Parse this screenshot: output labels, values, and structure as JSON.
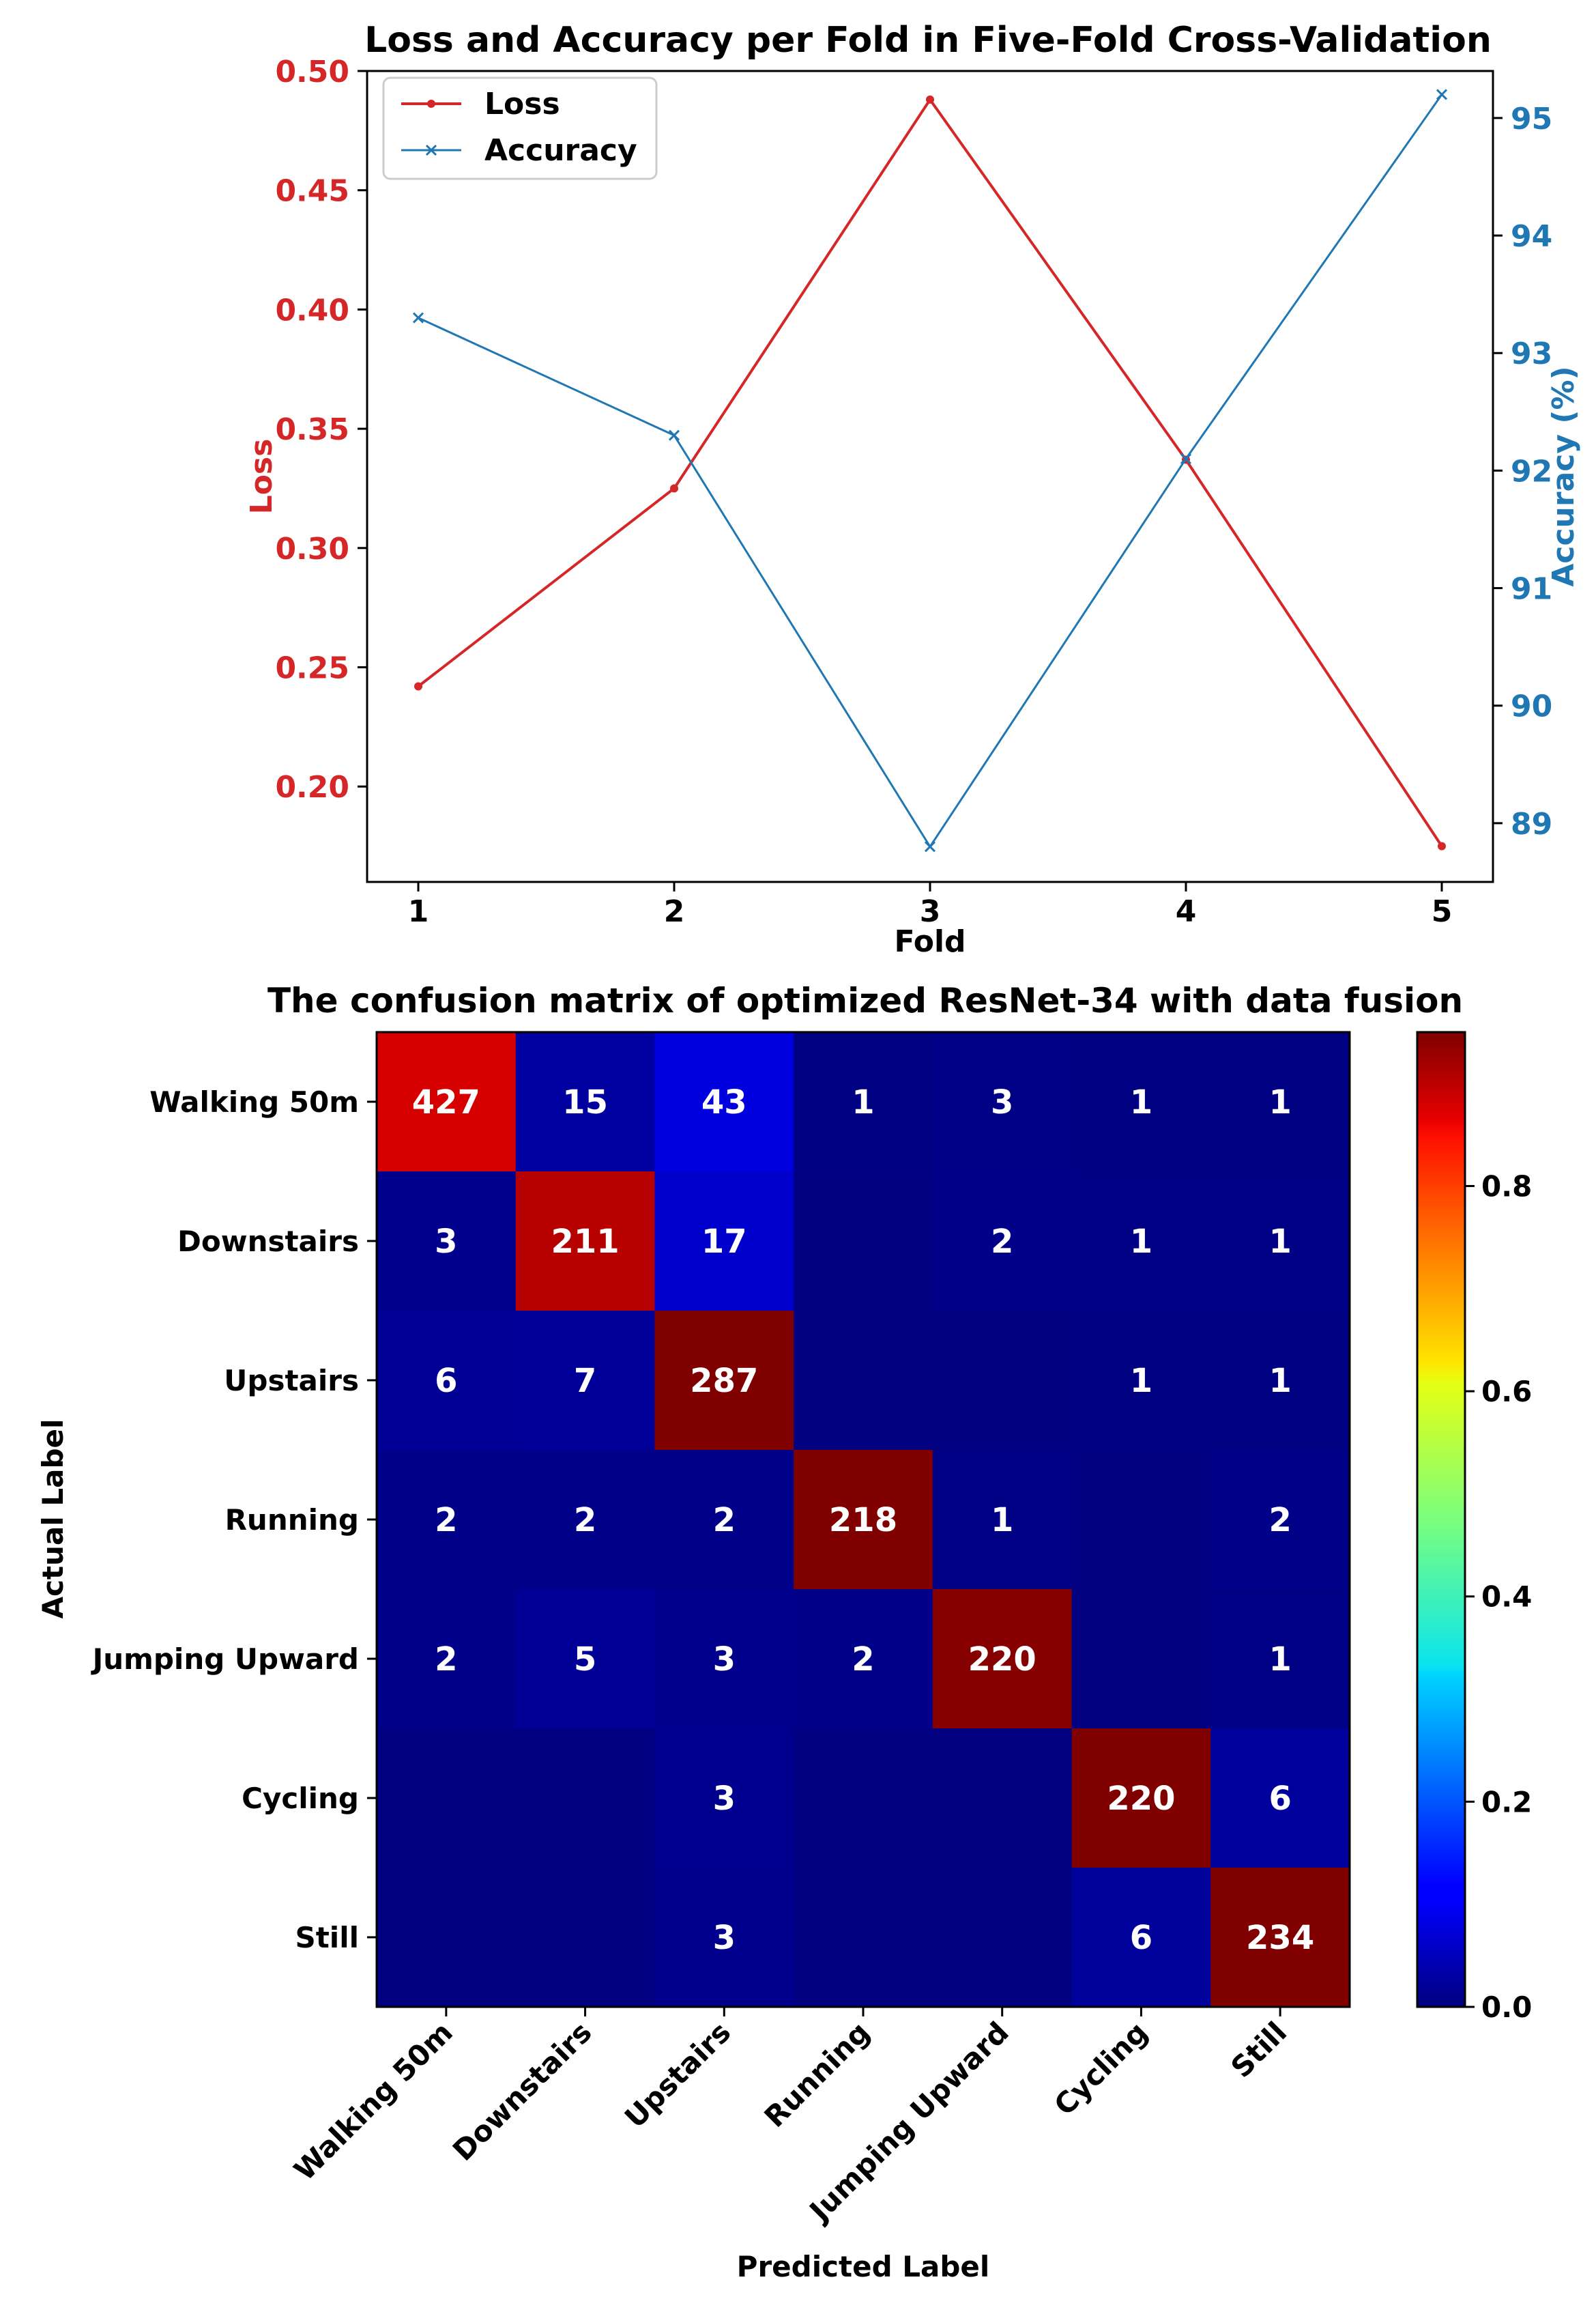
{
  "colors": {
    "loss": "#d62728",
    "accuracy": "#1f77b4",
    "text": "#000000",
    "cell_text": "#ffffff",
    "colormap": "jet"
  },
  "chart_data": [
    {
      "type": "line",
      "title": "Loss and Accuracy per Fold in Five-Fold Cross-Validation",
      "xlabel": "Fold",
      "ylabel_left": "Loss",
      "ylabel_right": "Accuracy (%)",
      "x": [
        1,
        2,
        3,
        4,
        5
      ],
      "x_ticks": [
        "1",
        "2",
        "3",
        "4",
        "5"
      ],
      "xlim": [
        0.8,
        5.2
      ],
      "ylim_left": [
        0.16,
        0.5
      ],
      "ylim_right": [
        88.5,
        95.4
      ],
      "yticks_left": [
        "0.20",
        "0.25",
        "0.30",
        "0.35",
        "0.40",
        "0.45",
        "0.50"
      ],
      "yticks_right": [
        "89",
        "90",
        "91",
        "92",
        "93",
        "94",
        "95"
      ],
      "grid": false,
      "legend_position": "upper-left",
      "series": [
        {
          "name": "Loss",
          "axis": "left",
          "marker": "dot",
          "color": "#d62728",
          "values": [
            0.242,
            0.325,
            0.488,
            0.337,
            0.175
          ]
        },
        {
          "name": "Accuracy",
          "axis": "right",
          "marker": "x",
          "color": "#1f77b4",
          "values": [
            93.3,
            92.3,
            88.8,
            92.1,
            95.2
          ]
        }
      ]
    },
    {
      "type": "heatmap",
      "title": "The confusion matrix of optimized ResNet-34 with data fusion",
      "xlabel": "Predicted Label",
      "ylabel": "Actual Label",
      "labels": [
        "Walking 50m",
        "Downstairs",
        "Upstairs",
        "Running",
        "Jumping Upward",
        "Cycling",
        "Still"
      ],
      "counts": [
        [
          427,
          15,
          43,
          1,
          3,
          1,
          1
        ],
        [
          3,
          211,
          17,
          0,
          2,
          1,
          1
        ],
        [
          6,
          7,
          287,
          0,
          0,
          1,
          1
        ],
        [
          2,
          2,
          2,
          218,
          1,
          0,
          2
        ],
        [
          2,
          5,
          3,
          2,
          220,
          0,
          1
        ],
        [
          0,
          0,
          3,
          0,
          0,
          220,
          6
        ],
        [
          0,
          0,
          3,
          0,
          0,
          6,
          234
        ]
      ],
      "zero_cells_labelled": false,
      "colorbar_range": [
        0.0,
        0.95
      ],
      "colorbar_ticks": [
        "0.0",
        "0.2",
        "0.4",
        "0.6",
        "0.8"
      ],
      "colormap": "jet"
    }
  ]
}
